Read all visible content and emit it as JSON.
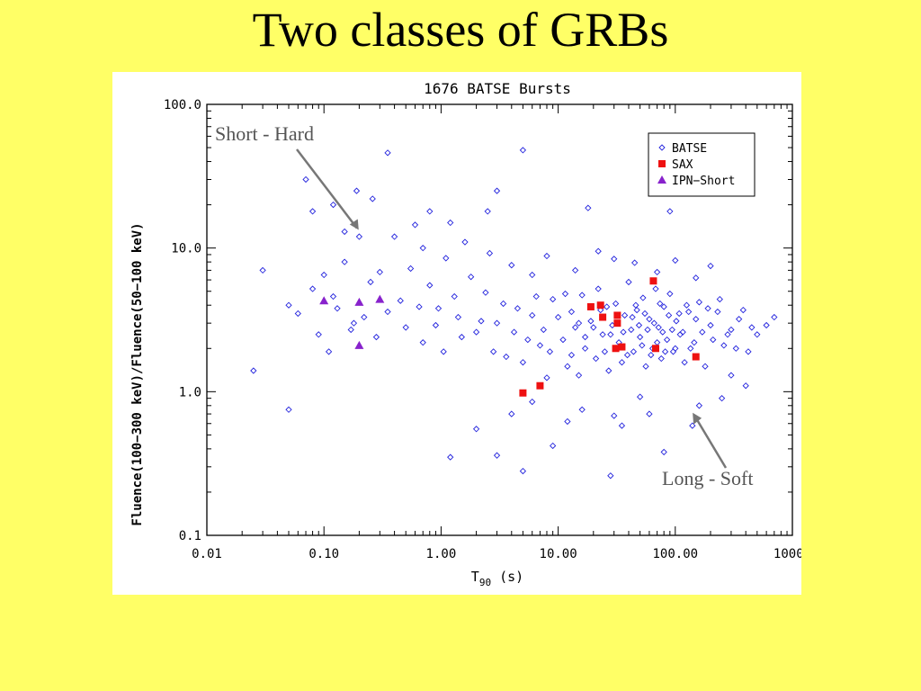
{
  "slide": {
    "title": "Two classes of GRBs"
  },
  "chart_data": {
    "type": "scatter",
    "title": "1676 BATSE Bursts",
    "xlabel": "T90 (s)",
    "xlabel_main": "T",
    "xlabel_sub": "90",
    "xlabel_rest": " (s)",
    "ylabel": "Fluence(100−300 keV)/Fluence(50−100 keV)",
    "x_scale": "log",
    "y_scale": "log",
    "xlim": [
      0.01,
      1000
    ],
    "ylim": [
      0.1,
      100
    ],
    "x_ticks": [
      0.01,
      0.1,
      1,
      10,
      100,
      1000
    ],
    "x_tick_labels": [
      "0.01",
      "0.10",
      "1.00",
      "10.00",
      "100.00",
      "1000."
    ],
    "y_ticks": [
      0.1,
      1,
      10,
      100
    ],
    "y_tick_labels": [
      "0.1",
      "1.0",
      "10.0",
      "100.0"
    ],
    "grid": false,
    "legend_placement": "top-right",
    "annotations": [
      {
        "text": "Short - Hard",
        "x": 0.16,
        "y": 13
      },
      {
        "text": "Long - Soft",
        "x": 120,
        "y": 0.6
      }
    ],
    "series": [
      {
        "name": "BATSE",
        "marker": "open-diamond",
        "color": "#2222dd",
        "points": [
          [
            0.025,
            1.4
          ],
          [
            0.05,
            0.75
          ],
          [
            0.07,
            30
          ],
          [
            0.08,
            18
          ],
          [
            0.12,
            20
          ],
          [
            0.19,
            25
          ],
          [
            0.2,
            12
          ],
          [
            0.35,
            46
          ],
          [
            0.26,
            22
          ],
          [
            5.0,
            48
          ],
          [
            3.0,
            25
          ],
          [
            2.5,
            18
          ],
          [
            0.8,
            18
          ],
          [
            1.2,
            15
          ],
          [
            18,
            19
          ],
          [
            90,
            18
          ],
          [
            0.15,
            13
          ],
          [
            0.03,
            7
          ],
          [
            0.05,
            4
          ],
          [
            0.06,
            3.5
          ],
          [
            0.09,
            2.5
          ],
          [
            0.11,
            1.9
          ],
          [
            0.13,
            3.8
          ],
          [
            0.17,
            2.7
          ],
          [
            0.22,
            3.3
          ],
          [
            0.25,
            5.8
          ],
          [
            0.3,
            6.8
          ],
          [
            0.45,
            4.3
          ],
          [
            0.55,
            7.2
          ],
          [
            0.65,
            3.9
          ],
          [
            0.8,
            5.5
          ],
          [
            0.9,
            2.9
          ],
          [
            1.1,
            8.5
          ],
          [
            1.3,
            4.6
          ],
          [
            1.5,
            2.4
          ],
          [
            1.8,
            6.3
          ],
          [
            2.2,
            3.1
          ],
          [
            2.8,
            1.9
          ],
          [
            3.4,
            4.1
          ],
          [
            4.2,
            2.6
          ],
          [
            5.0,
            1.6
          ],
          [
            6.0,
            3.4
          ],
          [
            7.0,
            2.1
          ],
          [
            8.0,
            1.25
          ],
          [
            9.0,
            4.4
          ],
          [
            11,
            2.3
          ],
          [
            12,
            1.5
          ],
          [
            13,
            3.6
          ],
          [
            14,
            2.8
          ],
          [
            15,
            1.3
          ],
          [
            16,
            4.7
          ],
          [
            17,
            2.0
          ],
          [
            19,
            3.1
          ],
          [
            21,
            1.7
          ],
          [
            22,
            5.2
          ],
          [
            24,
            2.5
          ],
          [
            26,
            3.9
          ],
          [
            27,
            1.4
          ],
          [
            29,
            2.9
          ],
          [
            31,
            4.1
          ],
          [
            33,
            2.2
          ],
          [
            35,
            1.6
          ],
          [
            37,
            3.4
          ],
          [
            40,
            5.8
          ],
          [
            42,
            2.7
          ],
          [
            44,
            1.9
          ],
          [
            47,
            3.7
          ],
          [
            50,
            2.4
          ],
          [
            53,
            4.5
          ],
          [
            56,
            1.5
          ],
          [
            60,
            3.2
          ],
          [
            64,
            2.0
          ],
          [
            68,
            5.2
          ],
          [
            72,
            2.8
          ],
          [
            76,
            1.7
          ],
          [
            80,
            3.9
          ],
          [
            85,
            2.3
          ],
          [
            90,
            4.8
          ],
          [
            96,
            1.9
          ],
          [
            102,
            3.1
          ],
          [
            110,
            2.5
          ],
          [
            120,
            1.6
          ],
          [
            130,
            3.6
          ],
          [
            145,
            2.2
          ],
          [
            160,
            4.2
          ],
          [
            180,
            1.5
          ],
          [
            200,
            2.9
          ],
          [
            230,
            3.6
          ],
          [
            260,
            2.1
          ],
          [
            300,
            2.7
          ],
          [
            350,
            3.2
          ],
          [
            420,
            1.9
          ],
          [
            500,
            2.5
          ],
          [
            600,
            2.9
          ],
          [
            700,
            3.3
          ],
          [
            400,
            1.1
          ],
          [
            300,
            1.3
          ],
          [
            250,
            0.9
          ],
          [
            160,
            0.8
          ],
          [
            140,
            0.58
          ],
          [
            80,
            0.38
          ],
          [
            28,
            0.26
          ],
          [
            9,
            0.42
          ],
          [
            5,
            0.28
          ],
          [
            3,
            0.36
          ],
          [
            1.2,
            0.35
          ],
          [
            2,
            0.55
          ],
          [
            4,
            0.7
          ],
          [
            6,
            0.85
          ],
          [
            12,
            0.62
          ],
          [
            16,
            0.75
          ],
          [
            30,
            0.68
          ],
          [
            35,
            0.58
          ],
          [
            50,
            0.92
          ],
          [
            60,
            0.7
          ],
          [
            200,
            7.5
          ],
          [
            150,
            6.2
          ],
          [
            100,
            8.2
          ],
          [
            70,
            6.8
          ],
          [
            45,
            7.9
          ],
          [
            30,
            8.4
          ],
          [
            22,
            9.5
          ],
          [
            14,
            7.0
          ],
          [
            8,
            8.8
          ],
          [
            6,
            6.5
          ],
          [
            4,
            7.6
          ],
          [
            2.6,
            9.2
          ],
          [
            1.6,
            11
          ],
          [
            0.7,
            10
          ],
          [
            0.4,
            12
          ],
          [
            0.6,
            14.5
          ],
          [
            0.15,
            8
          ],
          [
            0.1,
            6.5
          ],
          [
            0.08,
            5.2
          ],
          [
            0.12,
            4.6
          ],
          [
            0.18,
            3.0
          ],
          [
            0.28,
            2.4
          ],
          [
            0.35,
            3.6
          ],
          [
            0.5,
            2.8
          ],
          [
            0.7,
            2.2
          ],
          [
            0.95,
            3.8
          ],
          [
            1.05,
            1.9
          ],
          [
            1.4,
            3.3
          ],
          [
            2.0,
            2.6
          ],
          [
            2.4,
            4.9
          ],
          [
            3.0,
            3.0
          ],
          [
            3.6,
            1.75
          ],
          [
            4.5,
            3.8
          ],
          [
            5.5,
            2.3
          ],
          [
            6.5,
            4.6
          ],
          [
            7.5,
            2.7
          ],
          [
            8.5,
            1.9
          ],
          [
            10,
            3.3
          ],
          [
            11.5,
            4.8
          ],
          [
            13,
            1.8
          ],
          [
            15,
            3.0
          ],
          [
            17,
            2.4
          ],
          [
            20,
            2.8
          ],
          [
            23,
            3.7
          ],
          [
            25,
            1.9
          ],
          [
            28,
            2.5
          ],
          [
            32,
            3.0
          ],
          [
            36,
            2.6
          ],
          [
            39,
            1.8
          ],
          [
            43,
            3.3
          ],
          [
            46,
            4.0
          ],
          [
            49,
            2.9
          ],
          [
            52,
            2.1
          ],
          [
            55,
            3.5
          ],
          [
            58,
            2.7
          ],
          [
            62,
            1.8
          ],
          [
            66,
            3.0
          ],
          [
            70,
            2.2
          ],
          [
            74,
            4.1
          ],
          [
            78,
            2.6
          ],
          [
            82,
            1.9
          ],
          [
            88,
            3.4
          ],
          [
            94,
            2.7
          ],
          [
            100,
            2.0
          ],
          [
            108,
            3.5
          ],
          [
            116,
            2.6
          ],
          [
            125,
            4.0
          ],
          [
            135,
            2.0
          ],
          [
            150,
            3.2
          ],
          [
            170,
            2.6
          ],
          [
            190,
            3.8
          ],
          [
            210,
            2.3
          ],
          [
            240,
            4.4
          ],
          [
            280,
            2.5
          ],
          [
            330,
            2.0
          ],
          [
            380,
            3.7
          ],
          [
            450,
            2.8
          ]
        ]
      },
      {
        "name": "SAX",
        "marker": "filled-square",
        "color": "#ee1111",
        "points": [
          [
            5,
            0.98
          ],
          [
            7,
            1.1
          ],
          [
            19,
            3.9
          ],
          [
            23,
            4.0
          ],
          [
            24,
            3.3
          ],
          [
            31,
            2.0
          ],
          [
            32,
            3.0
          ],
          [
            32,
            3.4
          ],
          [
            35,
            2.05
          ],
          [
            65,
            5.9
          ],
          [
            68,
            2.0
          ],
          [
            150,
            1.75
          ]
        ]
      },
      {
        "name": "IPN−Short",
        "marker": "filled-triangle",
        "color": "#8822cc",
        "points": [
          [
            0.1,
            4.3
          ],
          [
            0.2,
            4.2
          ],
          [
            0.3,
            4.4
          ],
          [
            0.2,
            2.1
          ]
        ]
      }
    ]
  }
}
